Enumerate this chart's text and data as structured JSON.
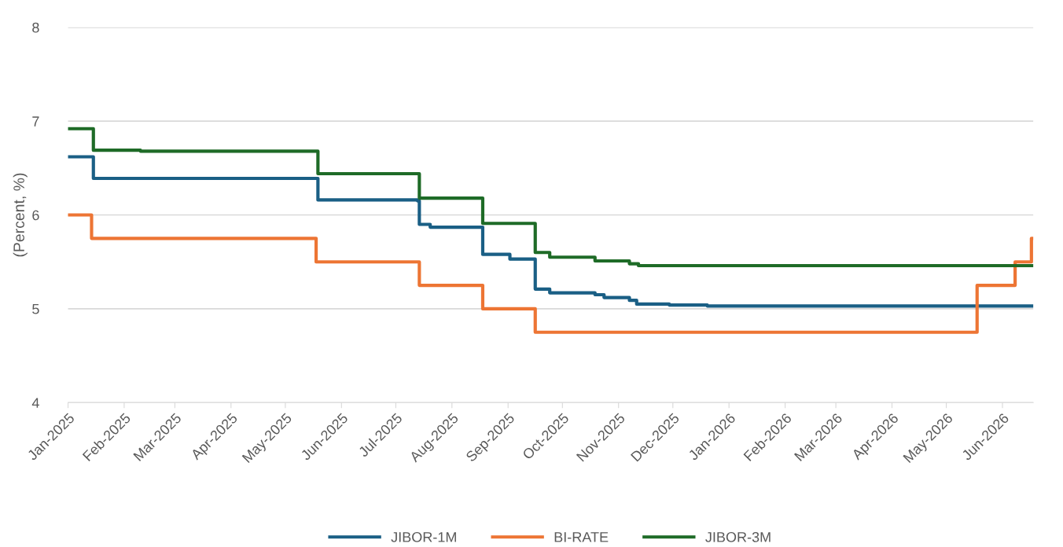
{
  "chart_data": {
    "type": "step",
    "ylabel": "(Percent, %)",
    "ylim": [
      4,
      8
    ],
    "yticks": [
      4,
      5,
      6,
      7,
      8
    ],
    "grid": "y",
    "legend": "bottom",
    "marker": "none",
    "line_style": "solid",
    "xlim": [
      "2025-01-01",
      "2026-06-18"
    ],
    "xticks": [
      {
        "value": "2025-01-01",
        "label": "Jan-2025"
      },
      {
        "value": "2025-02-01",
        "label": "Feb-2025"
      },
      {
        "value": "2025-03-01",
        "label": "Mar-2025"
      },
      {
        "value": "2025-04-01",
        "label": "Apr-2025"
      },
      {
        "value": "2025-05-01",
        "label": "May-2025"
      },
      {
        "value": "2025-06-01",
        "label": "Jun-2025"
      },
      {
        "value": "2025-07-01",
        "label": "Jul-2025"
      },
      {
        "value": "2025-08-01",
        "label": "Aug-2025"
      },
      {
        "value": "2025-09-01",
        "label": "Sep-2025"
      },
      {
        "value": "2025-10-01",
        "label": "Oct-2025"
      },
      {
        "value": "2025-11-01",
        "label": "Nov-2025"
      },
      {
        "value": "2025-12-01",
        "label": "Dec-2025"
      },
      {
        "value": "2026-01-01",
        "label": "Jan-2026"
      },
      {
        "value": "2026-02-01",
        "label": "Feb-2026"
      },
      {
        "value": "2026-03-01",
        "label": "Mar-2026"
      },
      {
        "value": "2026-04-01",
        "label": "Apr-2026"
      },
      {
        "value": "2026-05-01",
        "label": "May-2026"
      },
      {
        "value": "2026-06-01",
        "label": "Jun-2026"
      }
    ],
    "series": [
      {
        "name": "JIBOR-1M",
        "color": "#1a5f85",
        "x": [
          "2025-01-01",
          "2025-01-15",
          "2025-05-19",
          "2025-07-13",
          "2025-07-14",
          "2025-07-20",
          "2025-08-18",
          "2025-09-02",
          "2025-09-16",
          "2025-09-24",
          "2025-10-19",
          "2025-10-24",
          "2025-11-07",
          "2025-11-11",
          "2025-11-29",
          "2025-12-20",
          "2026-06-18"
        ],
        "values": [
          6.62,
          6.39,
          6.16,
          6.15,
          5.9,
          5.87,
          5.58,
          5.53,
          5.21,
          5.17,
          5.15,
          5.12,
          5.09,
          5.05,
          5.04,
          5.03,
          5.03
        ]
      },
      {
        "name": "BI-RATE",
        "color": "#ed7534",
        "x": [
          "2025-01-01",
          "2025-01-14",
          "2025-05-18",
          "2025-07-14",
          "2025-08-18",
          "2025-09-16",
          "2026-05-18",
          "2026-06-08",
          "2026-06-17",
          "2026-06-18"
        ],
        "values": [
          6.0,
          5.75,
          5.5,
          5.25,
          5.0,
          4.75,
          5.25,
          5.5,
          5.75,
          5.75
        ]
      },
      {
        "name": "JIBOR-3M",
        "color": "#1e6b27",
        "x": [
          "2025-01-01",
          "2025-01-15",
          "2025-02-10",
          "2025-05-19",
          "2025-07-14",
          "2025-08-18",
          "2025-09-16",
          "2025-09-24",
          "2025-10-19",
          "2025-11-07",
          "2025-11-12",
          "2026-06-18"
        ],
        "values": [
          6.92,
          6.69,
          6.68,
          6.44,
          6.18,
          5.91,
          5.6,
          5.55,
          5.51,
          5.48,
          5.46,
          5.46
        ]
      }
    ]
  }
}
